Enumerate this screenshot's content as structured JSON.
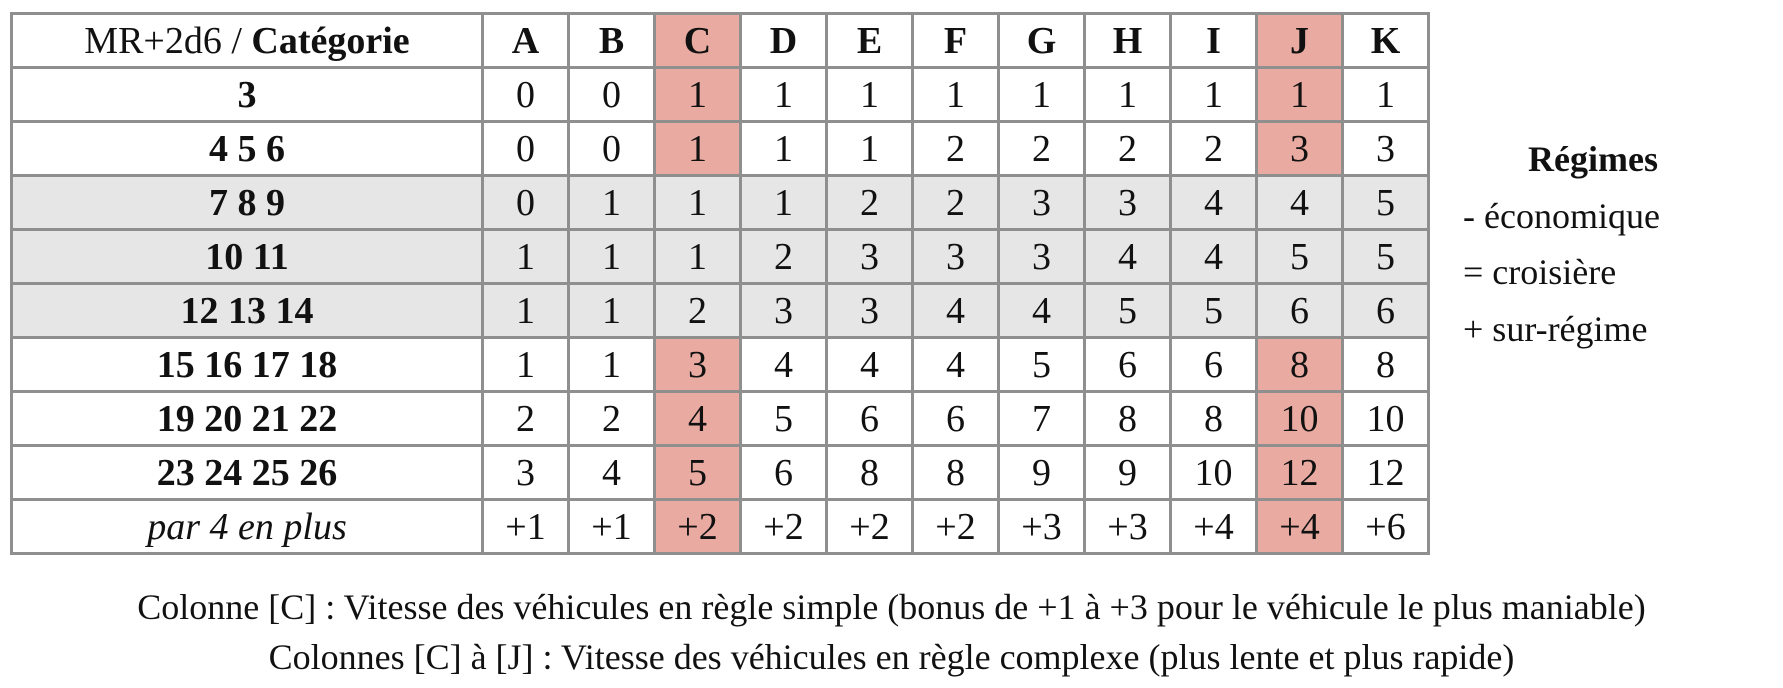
{
  "table": {
    "corner": {
      "prefix": "MR+2d6 / ",
      "bold": "Catégorie"
    },
    "columns": [
      "A",
      "B",
      "C",
      "D",
      "E",
      "F",
      "G",
      "H",
      "I",
      "J",
      "K"
    ],
    "highlighted_columns": [
      "C",
      "J"
    ],
    "highlight_color": "#e8aaa1",
    "shade_color": "#e6e6e6",
    "rows": [
      {
        "label": "3",
        "shaded": false,
        "values": [
          "0",
          "0",
          "1",
          "1",
          "1",
          "1",
          "1",
          "1",
          "1",
          "1",
          "1"
        ]
      },
      {
        "label": "4 5 6",
        "shaded": false,
        "values": [
          "0",
          "0",
          "1",
          "1",
          "1",
          "2",
          "2",
          "2",
          "2",
          "3",
          "3"
        ]
      },
      {
        "label": "7 8 9",
        "shaded": true,
        "values": [
          "0",
          "1",
          "1",
          "1",
          "2",
          "2",
          "3",
          "3",
          "4",
          "4",
          "5"
        ]
      },
      {
        "label": "10 11",
        "shaded": true,
        "values": [
          "1",
          "1",
          "1",
          "2",
          "3",
          "3",
          "3",
          "4",
          "4",
          "5",
          "5"
        ]
      },
      {
        "label": "12 13 14",
        "shaded": true,
        "values": [
          "1",
          "1",
          "2",
          "3",
          "3",
          "4",
          "4",
          "5",
          "5",
          "6",
          "6"
        ]
      },
      {
        "label": "15 16 17 18",
        "shaded": false,
        "values": [
          "1",
          "1",
          "3",
          "4",
          "4",
          "4",
          "5",
          "6",
          "6",
          "8",
          "8"
        ]
      },
      {
        "label": "19 20 21 22",
        "shaded": false,
        "values": [
          "2",
          "2",
          "4",
          "5",
          "6",
          "6",
          "7",
          "8",
          "8",
          "10",
          "10"
        ]
      },
      {
        "label": "23 24 25 26",
        "shaded": false,
        "values": [
          "3",
          "4",
          "5",
          "6",
          "8",
          "8",
          "9",
          "9",
          "10",
          "12",
          "12"
        ]
      }
    ],
    "footer": {
      "label": "par 4 en plus",
      "values": [
        "+1",
        "+1",
        "+2",
        "+2",
        "+2",
        "+2",
        "+3",
        "+3",
        "+4",
        "+4",
        "+6"
      ]
    }
  },
  "regimes": {
    "title": "Régimes",
    "items": [
      "- économique",
      "= croisière",
      "+ sur-régime"
    ]
  },
  "notes": [
    "Colonne [C] : Vitesse des véhicules en règle simple (bonus de +1 à +3 pour le véhicule le plus maniable)",
    "Colonnes [C] à [J] : Vitesse des véhicules en règle complexe (plus lente et plus rapide)"
  ]
}
